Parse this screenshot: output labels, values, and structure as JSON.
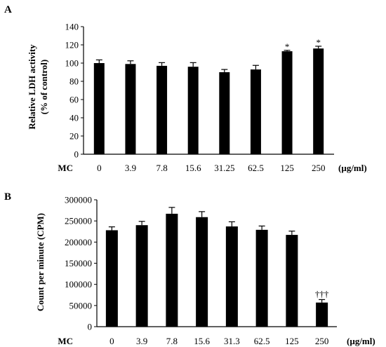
{
  "chart_data": [
    {
      "type": "bar",
      "panel": "A",
      "title": "",
      "ylabel_lines": [
        "Relative LDH activity",
        "(% of control)"
      ],
      "x_prefix": "MC",
      "x_unit": "(µg/ml)",
      "categories": [
        "0",
        "3.9",
        "7.8",
        "15.6",
        "31.25",
        "62.5",
        "125",
        "250"
      ],
      "values": [
        100,
        99,
        97,
        96,
        90,
        93,
        113,
        116
      ],
      "errors": [
        3.5,
        3.5,
        3.5,
        4.5,
        3,
        4.5,
        1,
        2.5
      ],
      "annotations": [
        "",
        "",
        "",
        "",
        "",
        "",
        "*",
        "*"
      ],
      "ylim": [
        0,
        140
      ],
      "yticks": [
        0,
        20,
        40,
        60,
        80,
        100,
        120,
        140
      ],
      "grid": false,
      "legend": "none",
      "bar_color": "#000000"
    },
    {
      "type": "bar",
      "panel": "B",
      "title": "",
      "ylabel_lines": [
        "Count per minute (CPM)"
      ],
      "x_prefix": "MC",
      "x_unit": "(µg/ml)",
      "categories": [
        "0",
        "3.9",
        "7.8",
        "15.6",
        "31.3",
        "62.5",
        "125",
        "250"
      ],
      "values": [
        228000,
        240000,
        267000,
        259000,
        237000,
        229000,
        217000,
        57000
      ],
      "errors": [
        8000,
        9000,
        15000,
        13000,
        11000,
        9000,
        9000,
        7000
      ],
      "annotations": [
        "",
        "",
        "",
        "",
        "",
        "",
        "",
        "†††"
      ],
      "ylim": [
        0,
        300000
      ],
      "yticks": [
        0,
        50000,
        100000,
        150000,
        200000,
        250000,
        300000
      ],
      "grid": false,
      "legend": "none",
      "bar_color": "#000000"
    }
  ]
}
